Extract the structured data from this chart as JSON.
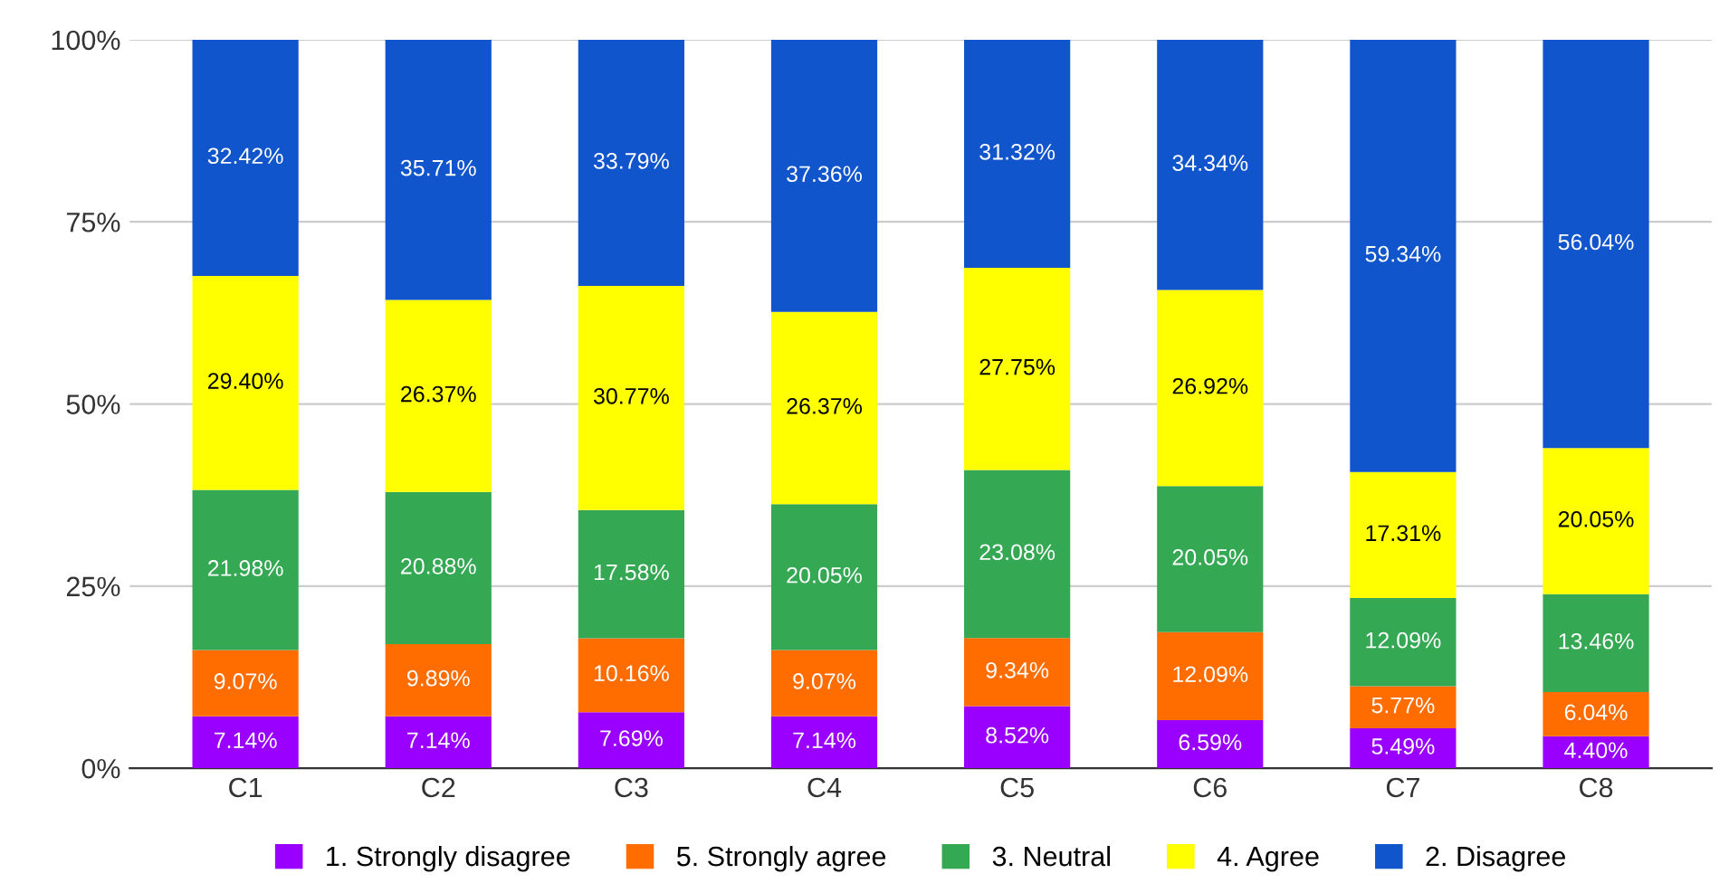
{
  "chart_data": {
    "type": "bar",
    "stacked": true,
    "categories": [
      "C1",
      "C2",
      "C3",
      "C4",
      "C5",
      "C6",
      "C7",
      "C8"
    ],
    "series": [
      {
        "name": "1. Strongly disagree",
        "color": "#9900ff",
        "values": [
          7.14,
          7.14,
          7.69,
          7.14,
          8.52,
          6.59,
          5.49,
          4.4
        ],
        "value_labels": [
          "7.14%",
          "7.14%",
          "7.69%",
          "7.14%",
          "8.52%",
          "6.59%",
          "5.49%",
          "4.40%"
        ]
      },
      {
        "name": "5. Strongly agree",
        "color": "#ff6d01",
        "values": [
          9.07,
          9.89,
          10.16,
          9.07,
          9.34,
          12.09,
          5.77,
          6.04
        ],
        "value_labels": [
          "9.07%",
          "9.89%",
          "10.16%",
          "9.07%",
          "9.34%",
          "12.09%",
          "5.77%",
          "6.04%"
        ]
      },
      {
        "name": "3. Neutral",
        "color": "#34a853",
        "values": [
          21.98,
          20.88,
          17.58,
          20.05,
          23.08,
          20.05,
          12.09,
          13.46
        ],
        "value_labels": [
          "21.98%",
          "20.88%",
          "17.58%",
          "20.05%",
          "23.08%",
          "20.05%",
          "12.09%",
          "13.46%"
        ]
      },
      {
        "name": "4. Agree",
        "color": "#ffff00",
        "values": [
          29.4,
          26.37,
          30.77,
          26.37,
          27.75,
          26.92,
          17.31,
          20.05
        ],
        "value_labels": [
          "29.40%",
          "26.37%",
          "30.77%",
          "26.37%",
          "27.75%",
          "26.92%",
          "17.31%",
          "20.05%"
        ]
      },
      {
        "name": "2. Disagree",
        "color": "#1155cc",
        "values": [
          32.42,
          35.71,
          33.79,
          37.36,
          31.32,
          34.34,
          59.34,
          56.04
        ],
        "value_labels": [
          "32.42%",
          "35.71%",
          "33.79%",
          "37.36%",
          "31.32%",
          "34.34%",
          "59.34%",
          "56.04%"
        ]
      }
    ],
    "ylim": [
      0,
      100
    ],
    "yticks": [
      {
        "value": 0,
        "label": "0%"
      },
      {
        "value": 25,
        "label": "25%"
      },
      {
        "value": 50,
        "label": "50%"
      },
      {
        "value": 75,
        "label": "75%"
      },
      {
        "value": 100,
        "label": "100%"
      }
    ],
    "grid": "y",
    "legend": "bottom"
  }
}
